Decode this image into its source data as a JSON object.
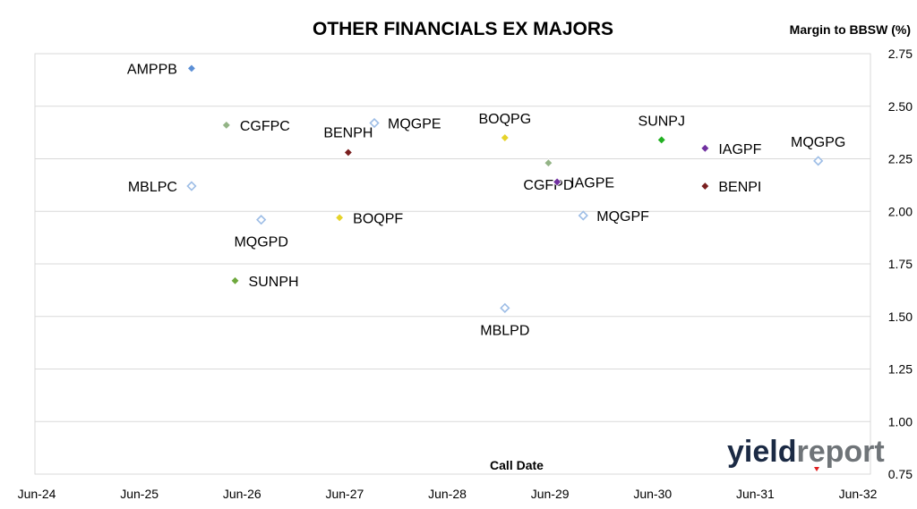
{
  "chart_data": {
    "type": "scatter",
    "title": "OTHER FINANCIALS EX MAJORS",
    "xlabel": "Call Date",
    "ylabel": "Margin to BBSW (%)",
    "x_ticks": [
      "Jun-24",
      "Jun-25",
      "Jun-26",
      "Jun-27",
      "Jun-28",
      "Jun-29",
      "Jun-30",
      "Jun-31",
      "Jun-32"
    ],
    "y_ticks": [
      "0.75",
      "1.00",
      "1.25",
      "1.50",
      "1.75",
      "2.00",
      "2.25",
      "2.50",
      "2.75"
    ],
    "xlim": [
      "2024-06",
      "2032-06"
    ],
    "ylim": [
      0.75,
      2.75
    ],
    "grid": "horizontal",
    "y_axis_side": "right",
    "points": [
      {
        "label": "AMPPB",
        "x": "2025-12",
        "y": 2.68,
        "color": "#5b8fd6",
        "style": "filled",
        "label_side": "left"
      },
      {
        "label": "MBLPC",
        "x": "2025-12",
        "y": 2.12,
        "color": "#9dbde6",
        "style": "hollow",
        "label_side": "left"
      },
      {
        "label": "CGFPC",
        "x": "2026-04",
        "y": 2.41,
        "color": "#93b486",
        "style": "filled",
        "label_side": "right"
      },
      {
        "label": "MQGPD",
        "x": "2026-08",
        "y": 1.96,
        "color": "#9dbde6",
        "style": "hollow",
        "label_side": "below"
      },
      {
        "label": "SUNPH",
        "x": "2026-05",
        "y": 1.67,
        "color": "#6ea83c",
        "style": "filled",
        "label_side": "right"
      },
      {
        "label": "BENPH",
        "x": "2027-06",
        "y": 2.28,
        "color": "#7a1f1f",
        "style": "filled",
        "label_side": "above-left"
      },
      {
        "label": "BOQPF",
        "x": "2027-05",
        "y": 1.97,
        "color": "#e6d32a",
        "style": "filled",
        "label_side": "right"
      },
      {
        "label": "MQGPE",
        "x": "2027-09",
        "y": 2.42,
        "color": "#9dbde6",
        "style": "hollow",
        "label_side": "right"
      },
      {
        "label": "BOQPG",
        "x": "2028-12",
        "y": 2.35,
        "color": "#e6d32a",
        "style": "filled",
        "label_side": "above"
      },
      {
        "label": "MBLPD",
        "x": "2028-12",
        "y": 1.54,
        "color": "#9dbde6",
        "style": "hollow",
        "label_side": "below"
      },
      {
        "label": "CGFPD",
        "x": "2029-05",
        "y": 2.23,
        "color": "#93b486",
        "style": "filled",
        "label_side": "below"
      },
      {
        "label": "IAGPE",
        "x": "2029-06",
        "y": 2.14,
        "color": "#7030a0",
        "style": "filled",
        "label_side": "right"
      },
      {
        "label": "MQGPF",
        "x": "2029-09",
        "y": 1.98,
        "color": "#9dbde6",
        "style": "hollow",
        "label_side": "right"
      },
      {
        "label": "SUNPJ",
        "x": "2030-06",
        "y": 2.34,
        "color": "#22b022",
        "style": "filled",
        "label_side": "above"
      },
      {
        "label": "IAGPF",
        "x": "2030-11",
        "y": 2.3,
        "color": "#7030a0",
        "style": "filled",
        "label_side": "right"
      },
      {
        "label": "BENPI",
        "x": "2030-11",
        "y": 2.12,
        "color": "#7a1f1f",
        "style": "filled",
        "label_side": "right"
      },
      {
        "label": "MQGPG",
        "x": "2031-12",
        "y": 2.24,
        "color": "#9dbde6",
        "style": "hollow",
        "label_side": "above"
      }
    ]
  },
  "logo": {
    "text_part1": "yield",
    "text_part2": "report",
    "accent_color": "#e02020"
  }
}
